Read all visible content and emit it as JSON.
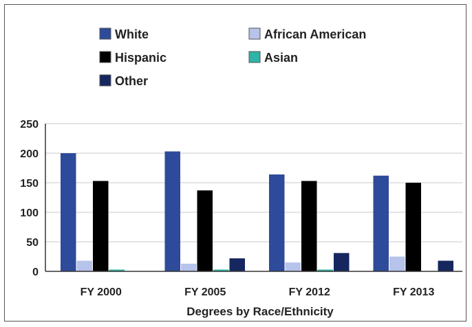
{
  "chart_data": {
    "type": "bar",
    "title": "",
    "xlabel": "Degrees by Race/Ethnicity",
    "ylabel": "",
    "ylim": [
      0,
      250
    ],
    "yticks": [
      0,
      50,
      100,
      150,
      200,
      250
    ],
    "grid": true,
    "legend": "top",
    "categories": [
      "FY 2000",
      "FY 2005",
      "FY 2012",
      "FY 2013"
    ],
    "series": [
      {
        "name": "White",
        "color": "#2e4a9a",
        "values": [
          200,
          203,
          164,
          162
        ]
      },
      {
        "name": "African American",
        "color": "#b6c3ea",
        "values": [
          18,
          13,
          15,
          25
        ]
      },
      {
        "name": "Hispanic",
        "color": "#000000",
        "values": [
          153,
          137,
          153,
          150
        ]
      },
      {
        "name": "Asian",
        "color": "#2fb3a6",
        "values": [
          3,
          3,
          3,
          0
        ]
      },
      {
        "name": "Other",
        "color": "#15275e",
        "values": [
          0,
          22,
          31,
          18
        ]
      }
    ]
  }
}
